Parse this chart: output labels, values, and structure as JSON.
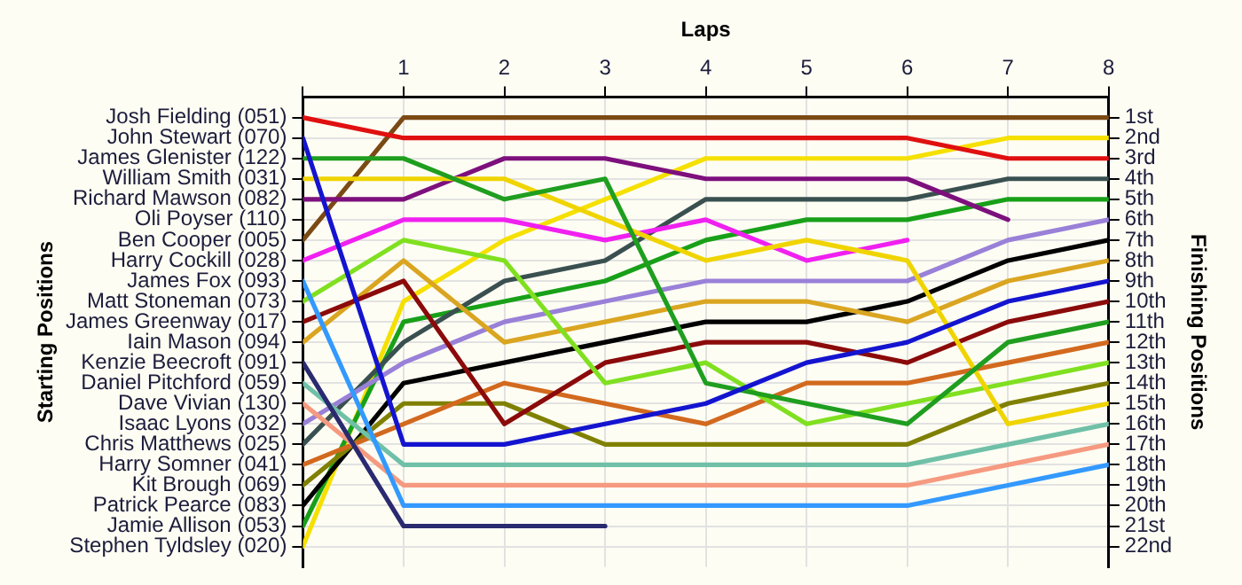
{
  "chart_data": {
    "type": "line",
    "xlabel": "Laps",
    "y2label": "Finishing Positions",
    "annotations": [
      "Starting Positions"
    ],
    "x": [
      0,
      1,
      2,
      3,
      4,
      5,
      6,
      7,
      8
    ],
    "xlim": [
      0,
      8
    ],
    "xticks": [
      {
        "value": 0,
        "label": null
      },
      1,
      2,
      3,
      4,
      5,
      6,
      7,
      8
    ],
    "y_categories": [
      "Josh Fielding (051)",
      "John Stewart (070)",
      "James Glenister (122)",
      "William Smith (031)",
      "Richard Mawson (082)",
      "Oli Poyser (110)",
      "Ben Cooper (005)",
      "Harry Cockill (028)",
      "James Fox (093)",
      "Matt Stoneman (073)",
      "James Greenway (017)",
      "Iain Mason (094)",
      "Kenzie Beecroft (091)",
      "Daniel Pitchford (059)",
      "Dave Vivian (130)",
      "Isaac Lyons (032)",
      "Chris Matthews (025)",
      "Harry Somner (041)",
      "Kit Brough (069)",
      "Patrick Pearce (083)",
      "Jamie Allison (053)",
      "Stephen Tyldsley (020)"
    ],
    "y2lim": [
      23,
      0
    ],
    "y2ticks": [
      {
        "value": 1,
        "label": "1st"
      },
      {
        "value": 2,
        "label": "2nd"
      },
      {
        "value": 3,
        "label": "3rd"
      },
      {
        "value": 4,
        "label": "4th"
      },
      {
        "value": 5,
        "label": "5th"
      },
      {
        "value": 6,
        "label": "6th"
      },
      {
        "value": 7,
        "label": "7th"
      },
      {
        "value": 8,
        "label": "8th"
      },
      {
        "value": 9,
        "label": "9th"
      },
      {
        "value": 10,
        "label": "10th"
      },
      {
        "value": 11,
        "label": "11th"
      },
      {
        "value": 12,
        "label": "12th"
      },
      {
        "value": 13,
        "label": "13th"
      },
      {
        "value": 14,
        "label": "14th"
      },
      {
        "value": 15,
        "label": "15th"
      },
      {
        "value": 16,
        "label": "16th"
      },
      {
        "value": 17,
        "label": "17th"
      },
      {
        "value": 18,
        "label": "18th"
      },
      {
        "value": 19,
        "label": "19th"
      },
      {
        "value": 20,
        "label": "20th"
      },
      {
        "value": 21,
        "label": "21st"
      },
      {
        "value": 22,
        "label": "22nd"
      }
    ],
    "grid": true,
    "legend": false,
    "marker": "none",
    "line_style": "solid",
    "series": [
      {
        "color": "#e01010",
        "axis": "y2",
        "values": [
          1,
          2,
          2,
          2,
          2,
          2,
          2,
          3,
          3
        ]
      },
      {
        "color": "#1414d0",
        "axis": "y2",
        "values": [
          2,
          17,
          17,
          16,
          15,
          13,
          12,
          10,
          9
        ]
      },
      {
        "color": "#1f9e1f",
        "axis": "y2",
        "values": [
          3,
          3,
          5,
          4,
          14,
          15,
          16,
          12,
          11
        ]
      },
      {
        "color": "#f0d400",
        "axis": "y2",
        "values": [
          4,
          4,
          4,
          6,
          8,
          7,
          8,
          16,
          15
        ]
      },
      {
        "color": "#7d107d",
        "axis": "y2",
        "values": [
          5,
          5,
          3,
          3,
          4,
          4,
          4,
          6,
          null
        ]
      },
      {
        "color": "#7b4a14",
        "axis": "y2",
        "values": [
          7,
          1,
          1,
          1,
          1,
          1,
          1,
          1,
          1
        ]
      },
      {
        "color": "#f020f0",
        "axis": "y2",
        "values": [
          8,
          6,
          6,
          7,
          6,
          8,
          7,
          null,
          null
        ]
      },
      {
        "color": "#3399ff",
        "axis": "y2",
        "values": [
          9,
          20,
          20,
          20,
          20,
          20,
          20,
          19,
          18
        ]
      },
      {
        "color": "#80e020",
        "axis": "y2",
        "values": [
          10,
          7,
          8,
          14,
          13,
          16,
          15,
          14,
          13
        ]
      },
      {
        "color": "#8b0a0a",
        "axis": "y2",
        "values": [
          11,
          9,
          16,
          13,
          12,
          12,
          13,
          11,
          10
        ]
      },
      {
        "color": "#daa520",
        "axis": "y2",
        "values": [
          12,
          8,
          12,
          11,
          10,
          10,
          11,
          9,
          8
        ]
      },
      {
        "color": "#2a2a70",
        "axis": "y2",
        "values": [
          13,
          21,
          21,
          21,
          null,
          null,
          null,
          null,
          null
        ]
      },
      {
        "color": "#70c0a8",
        "axis": "y2",
        "values": [
          14,
          18,
          18,
          18,
          18,
          18,
          18,
          17,
          16
        ]
      },
      {
        "color": "#f59a80",
        "axis": "y2",
        "values": [
          15,
          19,
          19,
          19,
          19,
          19,
          19,
          18,
          17
        ]
      },
      {
        "color": "#9980d8",
        "axis": "y2",
        "values": [
          16,
          13,
          11,
          10,
          9,
          9,
          9,
          7,
          6
        ]
      },
      {
        "color": "#3a5050",
        "axis": "y2",
        "values": [
          17,
          12,
          9,
          8,
          5,
          5,
          5,
          4,
          4
        ]
      },
      {
        "color": "#d2691e",
        "axis": "y2",
        "values": [
          18,
          16,
          14,
          15,
          16,
          14,
          14,
          13,
          12
        ]
      },
      {
        "color": "#808000",
        "axis": "y2",
        "values": [
          19,
          15,
          15,
          17,
          17,
          17,
          17,
          15,
          14
        ]
      },
      {
        "color": "#000000",
        "axis": "y2",
        "values": [
          20,
          14,
          13,
          12,
          11,
          11,
          10,
          8,
          7
        ]
      },
      {
        "color": "#18a018",
        "axis": "y2",
        "values": [
          21,
          11,
          10,
          9,
          7,
          6,
          6,
          5,
          5
        ]
      },
      {
        "color": "#f5e000",
        "axis": "y2",
        "values": [
          22,
          10,
          7,
          5,
          3,
          3,
          3,
          2,
          2
        ]
      }
    ]
  }
}
